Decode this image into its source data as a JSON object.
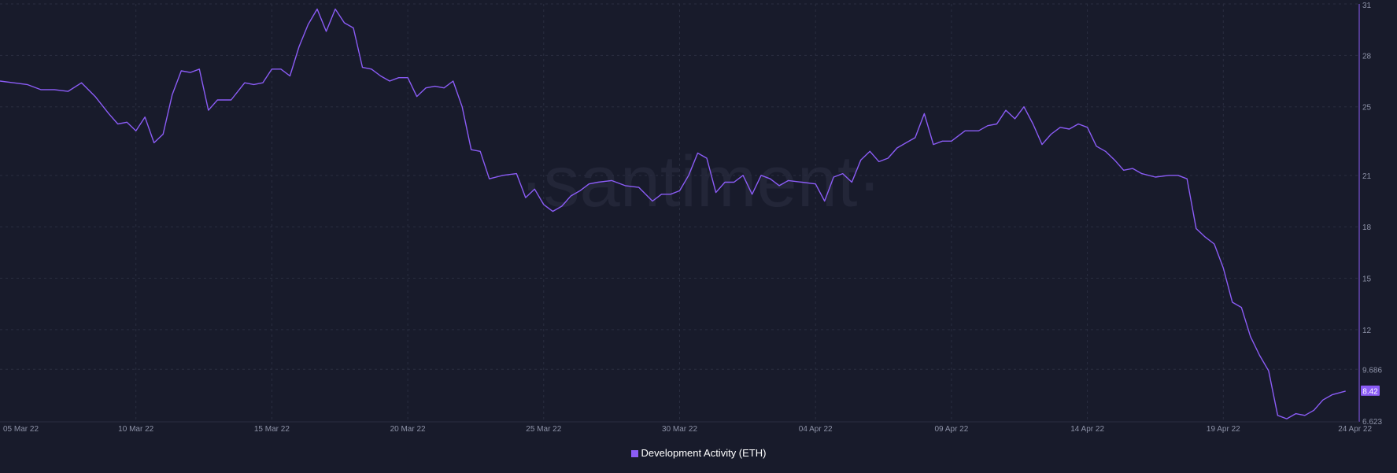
{
  "watermark": "·santiment·",
  "chart_data": {
    "type": "line",
    "series": [
      {
        "name": "Development Activity (ETH)",
        "color": "#8b5cf6",
        "last_value": "8.42",
        "points": [
          [
            "2022-03-05",
            26.5
          ],
          [
            "2022-03-05T12",
            26.4
          ],
          [
            "2022-03-06",
            26.3
          ],
          [
            "2022-03-06T12",
            26.0
          ],
          [
            "2022-03-07",
            26.0
          ],
          [
            "2022-03-07T12",
            25.9
          ],
          [
            "2022-03-08",
            26.4
          ],
          [
            "2022-03-08T12",
            25.6
          ],
          [
            "2022-03-09",
            24.6
          ],
          [
            "2022-03-09T08",
            24.0
          ],
          [
            "2022-03-09T16",
            24.1
          ],
          [
            "2022-03-10",
            23.6
          ],
          [
            "2022-03-10T08",
            24.4
          ],
          [
            "2022-03-10T16",
            22.9
          ],
          [
            "2022-03-11",
            23.4
          ],
          [
            "2022-03-11T08",
            25.7
          ],
          [
            "2022-03-11T16",
            27.1
          ],
          [
            "2022-03-12",
            27.0
          ],
          [
            "2022-03-12T08",
            27.2
          ],
          [
            "2022-03-12T16",
            24.8
          ],
          [
            "2022-03-13",
            25.4
          ],
          [
            "2022-03-13T12",
            25.4
          ],
          [
            "2022-03-14",
            26.4
          ],
          [
            "2022-03-14T08",
            26.3
          ],
          [
            "2022-03-14T16",
            26.4
          ],
          [
            "2022-03-15",
            27.2
          ],
          [
            "2022-03-15T08",
            27.2
          ],
          [
            "2022-03-15T16",
            26.8
          ],
          [
            "2022-03-16",
            28.5
          ],
          [
            "2022-03-16T08",
            29.8
          ],
          [
            "2022-03-16T16",
            30.7
          ],
          [
            "2022-03-17",
            29.4
          ],
          [
            "2022-03-17T08",
            30.7
          ],
          [
            "2022-03-17T16",
            29.9
          ],
          [
            "2022-03-18",
            29.6
          ],
          [
            "2022-03-18T08",
            27.3
          ],
          [
            "2022-03-18T16",
            27.2
          ],
          [
            "2022-03-19",
            26.8
          ],
          [
            "2022-03-19T08",
            26.5
          ],
          [
            "2022-03-19T16",
            26.7
          ],
          [
            "2022-03-20",
            26.7
          ],
          [
            "2022-03-20T08",
            25.6
          ],
          [
            "2022-03-20T16",
            26.1
          ],
          [
            "2022-03-21",
            26.2
          ],
          [
            "2022-03-21T08",
            26.1
          ],
          [
            "2022-03-21T16",
            26.5
          ],
          [
            "2022-03-22",
            25.0
          ],
          [
            "2022-03-22T08",
            22.5
          ],
          [
            "2022-03-22T16",
            22.4
          ],
          [
            "2022-03-23",
            20.8
          ],
          [
            "2022-03-23T12",
            21.0
          ],
          [
            "2022-03-24",
            21.1
          ],
          [
            "2022-03-24T08",
            19.7
          ],
          [
            "2022-03-24T16",
            20.2
          ],
          [
            "2022-03-25",
            19.3
          ],
          [
            "2022-03-25T08",
            18.9
          ],
          [
            "2022-03-25T16",
            19.2
          ],
          [
            "2022-03-26",
            19.8
          ],
          [
            "2022-03-26T08",
            20.1
          ],
          [
            "2022-03-26T16",
            20.5
          ],
          [
            "2022-03-27",
            20.6
          ],
          [
            "2022-03-27T12",
            20.7
          ],
          [
            "2022-03-28",
            20.4
          ],
          [
            "2022-03-28T12",
            20.3
          ],
          [
            "2022-03-29",
            19.5
          ],
          [
            "2022-03-29T08",
            19.9
          ],
          [
            "2022-03-29T16",
            19.9
          ],
          [
            "2022-03-30",
            20.1
          ],
          [
            "2022-03-30T08",
            21.0
          ],
          [
            "2022-03-30T16",
            22.3
          ],
          [
            "2022-03-31",
            22.0
          ],
          [
            "2022-03-31T08",
            20.0
          ],
          [
            "2022-03-31T16",
            20.6
          ],
          [
            "2022-04-01",
            20.6
          ],
          [
            "2022-04-01T08",
            21.0
          ],
          [
            "2022-04-01T16",
            19.9
          ],
          [
            "2022-04-02",
            21.0
          ],
          [
            "2022-04-02T08",
            20.8
          ],
          [
            "2022-04-02T16",
            20.4
          ],
          [
            "2022-04-03",
            20.7
          ],
          [
            "2022-04-03T12",
            20.6
          ],
          [
            "2022-04-04",
            20.5
          ],
          [
            "2022-04-04T08",
            19.5
          ],
          [
            "2022-04-04T16",
            20.9
          ],
          [
            "2022-04-05",
            21.1
          ],
          [
            "2022-04-05T08",
            20.6
          ],
          [
            "2022-04-05T16",
            21.9
          ],
          [
            "2022-04-06",
            22.4
          ],
          [
            "2022-04-06T08",
            21.8
          ],
          [
            "2022-04-06T16",
            22.0
          ],
          [
            "2022-04-07",
            22.6
          ],
          [
            "2022-04-07T08",
            22.9
          ],
          [
            "2022-04-07T16",
            23.2
          ],
          [
            "2022-04-08",
            24.6
          ],
          [
            "2022-04-08T08",
            22.8
          ],
          [
            "2022-04-08T16",
            23.0
          ],
          [
            "2022-04-09",
            23.0
          ],
          [
            "2022-04-09T12",
            23.6
          ],
          [
            "2022-04-10",
            23.6
          ],
          [
            "2022-04-10T08",
            23.9
          ],
          [
            "2022-04-10T16",
            24.0
          ],
          [
            "2022-04-11",
            24.8
          ],
          [
            "2022-04-11T08",
            24.3
          ],
          [
            "2022-04-11T16",
            25.0
          ],
          [
            "2022-04-12",
            24.0
          ],
          [
            "2022-04-12T08",
            22.8
          ],
          [
            "2022-04-12T16",
            23.4
          ],
          [
            "2022-04-13",
            23.8
          ],
          [
            "2022-04-13T08",
            23.7
          ],
          [
            "2022-04-13T16",
            24.0
          ],
          [
            "2022-04-14",
            23.8
          ],
          [
            "2022-04-14T08",
            22.7
          ],
          [
            "2022-04-14T16",
            22.4
          ],
          [
            "2022-04-15",
            21.9
          ],
          [
            "2022-04-15T08",
            21.3
          ],
          [
            "2022-04-15T16",
            21.4
          ],
          [
            "2022-04-16",
            21.1
          ],
          [
            "2022-04-16T12",
            20.9
          ],
          [
            "2022-04-17",
            21.0
          ],
          [
            "2022-04-17T08",
            21.0
          ],
          [
            "2022-04-17T16",
            20.8
          ],
          [
            "2022-04-18",
            17.9
          ],
          [
            "2022-04-18T08",
            17.4
          ],
          [
            "2022-04-18T16",
            17.0
          ],
          [
            "2022-04-19",
            15.6
          ],
          [
            "2022-04-19T08",
            13.6
          ],
          [
            "2022-04-19T16",
            13.3
          ],
          [
            "2022-04-20",
            11.6
          ],
          [
            "2022-04-20T08",
            10.5
          ],
          [
            "2022-04-20T16",
            9.6
          ],
          [
            "2022-04-21",
            7.0
          ],
          [
            "2022-04-21T08",
            6.8
          ],
          [
            "2022-04-21T16",
            7.1
          ],
          [
            "2022-04-22",
            7.0
          ],
          [
            "2022-04-22T08",
            7.3
          ],
          [
            "2022-04-22T16",
            7.9
          ],
          [
            "2022-04-23",
            8.2
          ],
          [
            "2022-04-23T12",
            8.42
          ]
        ]
      }
    ],
    "x_ticks": [
      {
        "date": "2022-03-05",
        "label": "05 Mar 22"
      },
      {
        "date": "2022-03-10",
        "label": "10 Mar 22"
      },
      {
        "date": "2022-03-15",
        "label": "15 Mar 22"
      },
      {
        "date": "2022-03-20",
        "label": "20 Mar 22"
      },
      {
        "date": "2022-03-25",
        "label": "25 Mar 22"
      },
      {
        "date": "2022-03-30",
        "label": "30 Mar 22"
      },
      {
        "date": "2022-04-04",
        "label": "04 Apr 22"
      },
      {
        "date": "2022-04-09",
        "label": "09 Apr 22"
      },
      {
        "date": "2022-04-14",
        "label": "14 Apr 22"
      },
      {
        "date": "2022-04-19",
        "label": "19 Apr 22"
      },
      {
        "date": "2022-04-24",
        "label": "24 Apr 22"
      }
    ],
    "y_ticks": [
      "31",
      "28",
      "25",
      "21",
      "18",
      "15",
      "12",
      "9.686",
      "6.623"
    ],
    "xlim": [
      "2022-03-05",
      "2022-04-24"
    ],
    "ylim": [
      6.623,
      31
    ],
    "grid": true,
    "legend": "bottom-center",
    "colors": {
      "background": "#181b2b",
      "grid": "#2a2e40",
      "tick": "#8c91a6",
      "axis": "#8b5cf6"
    }
  }
}
